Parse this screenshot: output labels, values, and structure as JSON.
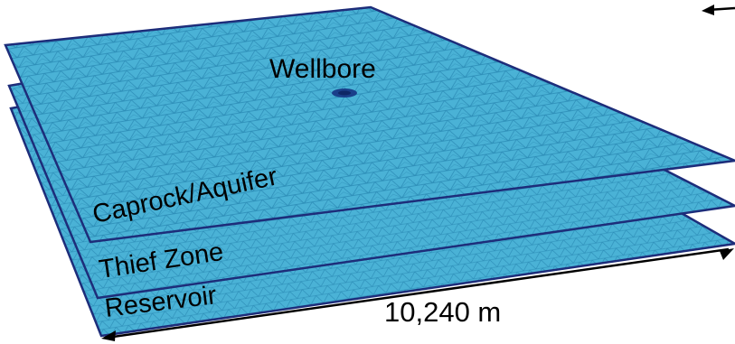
{
  "layers": {
    "caprock": "Caprock/Aquifer",
    "thief": "Thief Zone",
    "reservoir": "Reservoir"
  },
  "wellbore_label": "Wellbore",
  "dimension_label": "10,240 m",
  "colors": {
    "mesh_fill": "#4ab2d6",
    "mesh_lines": "#1f7fa8",
    "mesh_dense": "#1a3f8a",
    "edge": "#1d2d7a",
    "text": "#000000"
  }
}
